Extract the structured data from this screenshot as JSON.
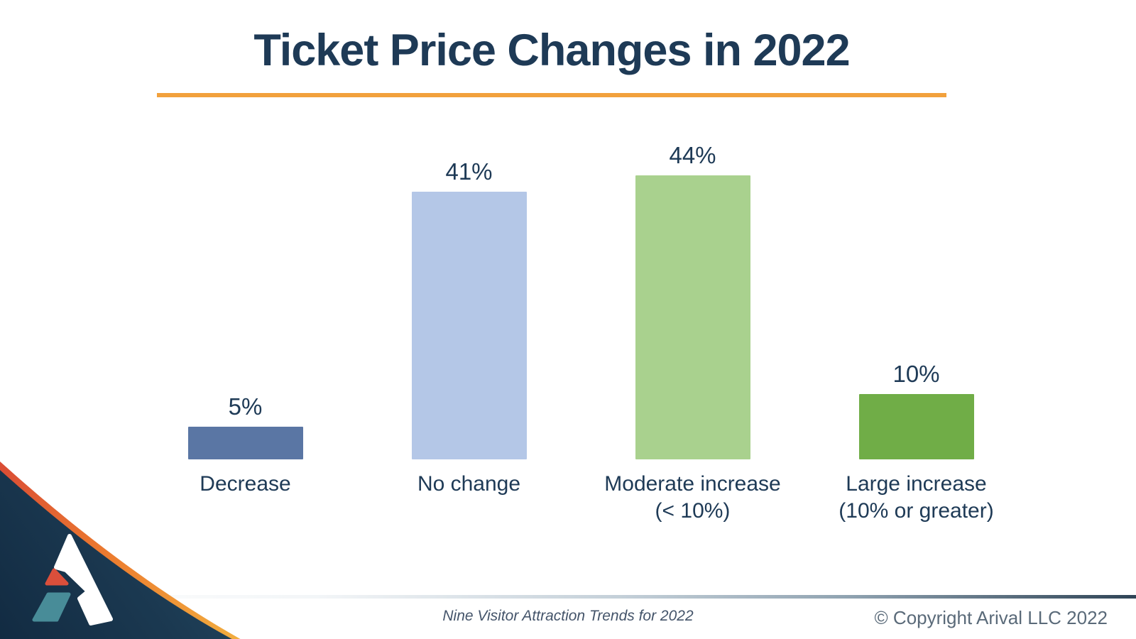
{
  "slide": {
    "title": "Ticket Price Changes in 2022"
  },
  "chart_data": {
    "type": "bar",
    "title": "Ticket Price Changes in 2022",
    "categories": [
      "Decrease",
      "No change",
      "Moderate increase (< 10%)",
      "Large increase (10% or greater)"
    ],
    "values": [
      5,
      41,
      44,
      10
    ],
    "value_labels": [
      "5%",
      "41%",
      "44%",
      "10%"
    ],
    "bar_colors": [
      "#5A76A4",
      "#B4C7E7",
      "#A9D18E",
      "#70AD47"
    ],
    "xlabel": "",
    "ylabel": "",
    "ylim": [
      0,
      50
    ],
    "grid": false,
    "legend": false,
    "layout_hint": "data labels above bars, no axes shown"
  },
  "bars": [
    {
      "label_lines": [
        "Decrease"
      ],
      "value": 5,
      "value_label": "5%",
      "color": "#5A76A4"
    },
    {
      "label_lines": [
        "No change"
      ],
      "value": 41,
      "value_label": "41%",
      "color": "#B4C7E7"
    },
    {
      "label_lines": [
        "Moderate increase",
        "(< 10%)"
      ],
      "value": 44,
      "value_label": "44%",
      "color": "#A9D18E"
    },
    {
      "label_lines": [
        "Large increase",
        "(10% or greater)"
      ],
      "value": 10,
      "value_label": "10%",
      "color": "#70AD47"
    }
  ],
  "footer": {
    "source_note": "Nine Visitor Attraction Trends for 2022",
    "copyright": "© Copyright Arival LLC 2022"
  },
  "logo": {
    "name": "arival-logo"
  },
  "colors": {
    "title_text": "#1E3A56",
    "accent_underline": "#F2A13C",
    "footer_text": "#44546A",
    "copyright_text": "#5A6A79",
    "logo_navy_dark": "#122B42",
    "logo_navy_light": "#264B63",
    "logo_arc_red": "#D94A35",
    "logo_arc_orange": "#EC7D2F",
    "logo_arc_yellow": "#F2AE3F",
    "logo_mark_white": "#FFFFFF",
    "logo_mark_red": "#DA4F3B",
    "logo_mark_teal": "#488C98"
  }
}
